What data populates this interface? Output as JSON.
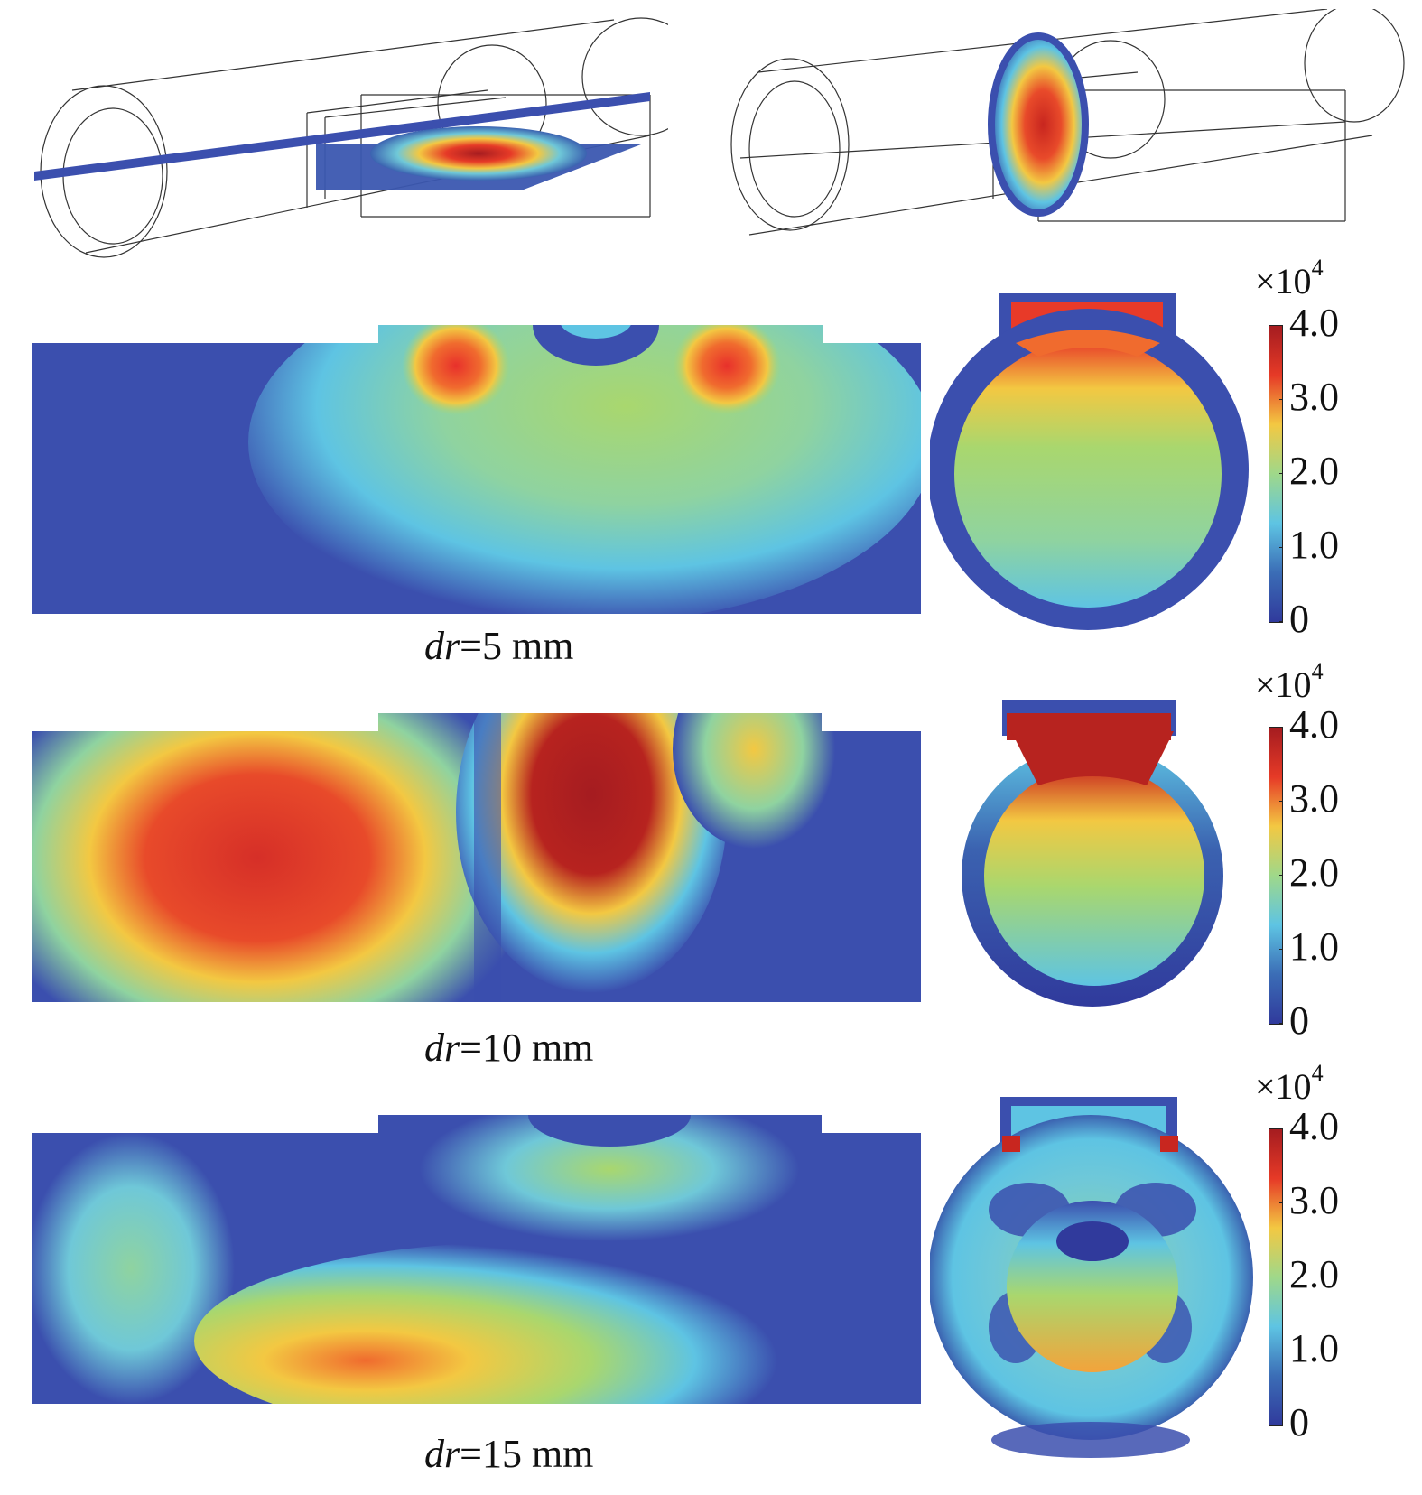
{
  "colorbar": {
    "multiplier_prefix": "×10",
    "multiplier_exponent": "4",
    "ticks": [
      "4.0",
      "3.0",
      "2.0",
      "1.0",
      "0"
    ],
    "stops": [
      "#a51c20",
      "#e63a27",
      "#f3c842",
      "#9fd88a",
      "#5ec4e3",
      "#3b6db6",
      "#303a9c"
    ]
  },
  "rows": [
    {
      "caption_var": "dr",
      "caption_value": "=5 mm"
    },
    {
      "caption_var": "dr",
      "caption_value": "=10 mm"
    },
    {
      "caption_var": "dr",
      "caption_value": "=15 mm"
    }
  ]
}
